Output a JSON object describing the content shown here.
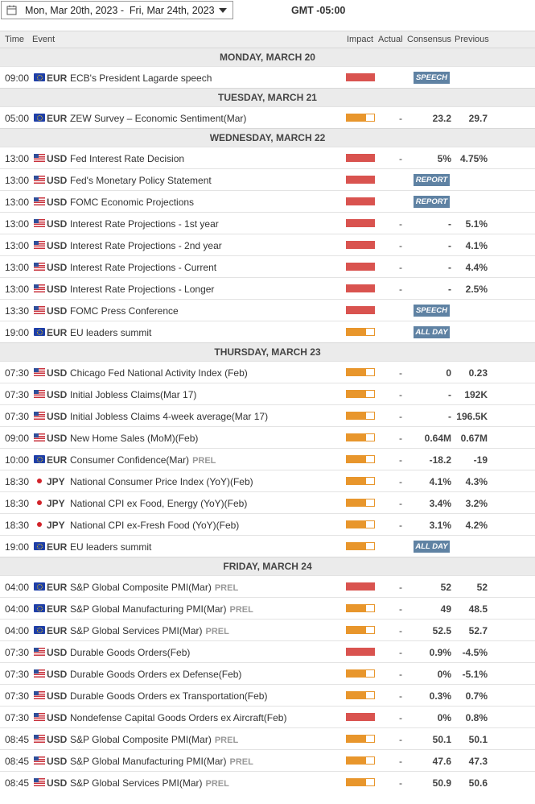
{
  "header": {
    "date_range": "Mon, Mar 20th, 2023 -  Fri, Mar 24th, 2023",
    "timezone": "GMT -05:00"
  },
  "columns": {
    "time": "Time",
    "event": "Event",
    "impact": "Impact",
    "actual": "Actual",
    "consensus": "Consensus",
    "previous": "Previous"
  },
  "days": [
    {
      "label": "MONDAY, MARCH 20",
      "events": [
        {
          "time": "09:00",
          "flag": "eu",
          "currency": "EUR",
          "event": "ECB's President Lagarde speech",
          "prel": "",
          "impact": "high",
          "actual": "",
          "consensus": "",
          "previous": "",
          "tag": "SPEECH"
        }
      ]
    },
    {
      "label": "TUESDAY, MARCH 21",
      "events": [
        {
          "time": "05:00",
          "flag": "eu",
          "currency": "EUR",
          "event": "ZEW Survey – Economic Sentiment(Mar)",
          "prel": "",
          "impact": "med",
          "actual": "-",
          "consensus": "23.2",
          "previous": "29.7",
          "tag": ""
        }
      ]
    },
    {
      "label": "WEDNESDAY, MARCH 22",
      "events": [
        {
          "time": "13:00",
          "flag": "us",
          "currency": "USD",
          "event": "Fed Interest Rate Decision",
          "prel": "",
          "impact": "high",
          "actual": "-",
          "consensus": "5%",
          "previous": "4.75%",
          "tag": ""
        },
        {
          "time": "13:00",
          "flag": "us",
          "currency": "USD",
          "event": "Fed's Monetary Policy Statement",
          "prel": "",
          "impact": "high",
          "actual": "",
          "consensus": "",
          "previous": "",
          "tag": "REPORT"
        },
        {
          "time": "13:00",
          "flag": "us",
          "currency": "USD",
          "event": "FOMC Economic Projections",
          "prel": "",
          "impact": "high",
          "actual": "",
          "consensus": "",
          "previous": "",
          "tag": "REPORT"
        },
        {
          "time": "13:00",
          "flag": "us",
          "currency": "USD",
          "event": "Interest Rate Projections - 1st year",
          "prel": "",
          "impact": "high",
          "actual": "-",
          "consensus": "-",
          "previous": "5.1%",
          "tag": ""
        },
        {
          "time": "13:00",
          "flag": "us",
          "currency": "USD",
          "event": "Interest Rate Projections - 2nd year",
          "prel": "",
          "impact": "high",
          "actual": "-",
          "consensus": "-",
          "previous": "4.1%",
          "tag": ""
        },
        {
          "time": "13:00",
          "flag": "us",
          "currency": "USD",
          "event": "Interest Rate Projections - Current",
          "prel": "",
          "impact": "high",
          "actual": "-",
          "consensus": "-",
          "previous": "4.4%",
          "tag": ""
        },
        {
          "time": "13:00",
          "flag": "us",
          "currency": "USD",
          "event": "Interest Rate Projections - Longer",
          "prel": "",
          "impact": "high",
          "actual": "-",
          "consensus": "-",
          "previous": "2.5%",
          "tag": ""
        },
        {
          "time": "13:30",
          "flag": "us",
          "currency": "USD",
          "event": "FOMC Press Conference",
          "prel": "",
          "impact": "high",
          "actual": "",
          "consensus": "",
          "previous": "",
          "tag": "SPEECH"
        },
        {
          "time": "19:00",
          "flag": "eu",
          "currency": "EUR",
          "event": "EU leaders summit",
          "prel": "",
          "impact": "med",
          "actual": "",
          "consensus": "",
          "previous": "",
          "tag": "ALL DAY"
        }
      ]
    },
    {
      "label": "THURSDAY, MARCH 23",
      "events": [
        {
          "time": "07:30",
          "flag": "us",
          "currency": "USD",
          "event": "Chicago Fed National Activity Index (Feb)",
          "prel": "",
          "impact": "med",
          "actual": "-",
          "consensus": "0",
          "previous": "0.23",
          "tag": ""
        },
        {
          "time": "07:30",
          "flag": "us",
          "currency": "USD",
          "event": "Initial Jobless Claims(Mar 17)",
          "prel": "",
          "impact": "med",
          "actual": "-",
          "consensus": "-",
          "previous": "192K",
          "tag": ""
        },
        {
          "time": "07:30",
          "flag": "us",
          "currency": "USD",
          "event": "Initial Jobless Claims 4-week average(Mar 17)",
          "prel": "",
          "impact": "med",
          "actual": "-",
          "consensus": "-",
          "previous": "196.5K",
          "tag": ""
        },
        {
          "time": "09:00",
          "flag": "us",
          "currency": "USD",
          "event": "New Home Sales (MoM)(Feb)",
          "prel": "",
          "impact": "med",
          "actual": "-",
          "consensus": "0.64M",
          "previous": "0.67M",
          "tag": ""
        },
        {
          "time": "10:00",
          "flag": "eu",
          "currency": "EUR",
          "event": "Consumer Confidence(Mar)",
          "prel": "PREL",
          "impact": "med",
          "actual": "-",
          "consensus": "-18.2",
          "previous": "-19",
          "tag": ""
        },
        {
          "time": "18:30",
          "flag": "jp",
          "currency": "JPY",
          "event": "National Consumer Price Index (YoY)(Feb)",
          "prel": "",
          "impact": "med",
          "actual": "-",
          "consensus": "4.1%",
          "previous": "4.3%",
          "tag": ""
        },
        {
          "time": "18:30",
          "flag": "jp",
          "currency": "JPY",
          "event": "National CPI ex Food, Energy (YoY)(Feb)",
          "prel": "",
          "impact": "med",
          "actual": "-",
          "consensus": "3.4%",
          "previous": "3.2%",
          "tag": ""
        },
        {
          "time": "18:30",
          "flag": "jp",
          "currency": "JPY",
          "event": "National CPI ex-Fresh Food (YoY)(Feb)",
          "prel": "",
          "impact": "med",
          "actual": "-",
          "consensus": "3.1%",
          "previous": "4.2%",
          "tag": ""
        },
        {
          "time": "19:00",
          "flag": "eu",
          "currency": "EUR",
          "event": "EU leaders summit",
          "prel": "",
          "impact": "med",
          "actual": "",
          "consensus": "",
          "previous": "",
          "tag": "ALL DAY"
        }
      ]
    },
    {
      "label": "FRIDAY, MARCH 24",
      "events": [
        {
          "time": "04:00",
          "flag": "eu",
          "currency": "EUR",
          "event": "S&P Global Composite PMI(Mar)",
          "prel": "PREL",
          "impact": "high",
          "actual": "-",
          "consensus": "52",
          "previous": "52",
          "tag": ""
        },
        {
          "time": "04:00",
          "flag": "eu",
          "currency": "EUR",
          "event": "S&P Global Manufacturing PMI(Mar)",
          "prel": "PREL",
          "impact": "med",
          "actual": "-",
          "consensus": "49",
          "previous": "48.5",
          "tag": ""
        },
        {
          "time": "04:00",
          "flag": "eu",
          "currency": "EUR",
          "event": "S&P Global Services PMI(Mar)",
          "prel": "PREL",
          "impact": "med",
          "actual": "-",
          "consensus": "52.5",
          "previous": "52.7",
          "tag": ""
        },
        {
          "time": "07:30",
          "flag": "us",
          "currency": "USD",
          "event": "Durable Goods Orders(Feb)",
          "prel": "",
          "impact": "high",
          "actual": "-",
          "consensus": "0.9%",
          "previous": "-4.5%",
          "tag": ""
        },
        {
          "time": "07:30",
          "flag": "us",
          "currency": "USD",
          "event": "Durable Goods Orders ex Defense(Feb)",
          "prel": "",
          "impact": "med",
          "actual": "-",
          "consensus": "0%",
          "previous": "-5.1%",
          "tag": ""
        },
        {
          "time": "07:30",
          "flag": "us",
          "currency": "USD",
          "event": "Durable Goods Orders ex Transportation(Feb)",
          "prel": "",
          "impact": "med",
          "actual": "-",
          "consensus": "0.3%",
          "previous": "0.7%",
          "tag": ""
        },
        {
          "time": "07:30",
          "flag": "us",
          "currency": "USD",
          "event": "Nondefense Capital Goods Orders ex Aircraft(Feb)",
          "prel": "",
          "impact": "high",
          "actual": "-",
          "consensus": "0%",
          "previous": "0.8%",
          "tag": ""
        },
        {
          "time": "08:45",
          "flag": "us",
          "currency": "USD",
          "event": "S&P Global Composite PMI(Mar)",
          "prel": "PREL",
          "impact": "med",
          "actual": "-",
          "consensus": "50.1",
          "previous": "50.1",
          "tag": ""
        },
        {
          "time": "08:45",
          "flag": "us",
          "currency": "USD",
          "event": "S&P Global Manufacturing PMI(Mar)",
          "prel": "PREL",
          "impact": "med",
          "actual": "-",
          "consensus": "47.6",
          "previous": "47.3",
          "tag": ""
        },
        {
          "time": "08:45",
          "flag": "us",
          "currency": "USD",
          "event": "S&P Global Services PMI(Mar)",
          "prel": "PREL",
          "impact": "med",
          "actual": "-",
          "consensus": "50.9",
          "previous": "50.6",
          "tag": ""
        }
      ]
    }
  ]
}
